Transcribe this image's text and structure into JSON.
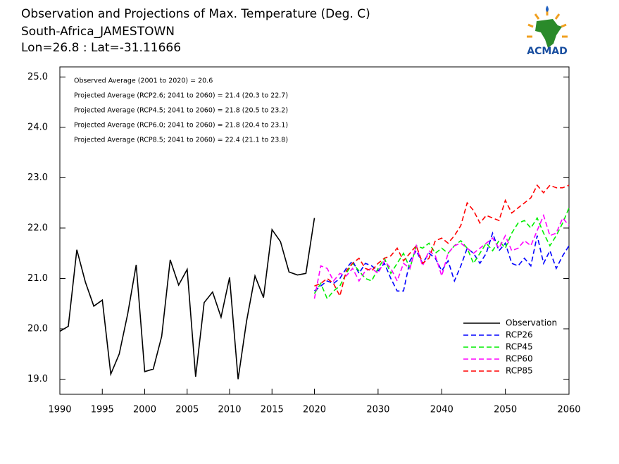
{
  "chart_data": {
    "type": "line",
    "title": "Observation and Projections of Max. Temperature (Deg. C)",
    "subtitle": "South-Africa_JAMESTOWN",
    "location": "Lon=26.8 : Lat=-31.11666",
    "annotations": [
      "Observed Average (2001 to 2020) = 20.6",
      "Projected Average (RCP2.6; 2041 to 2060) = 21.4 (20.3 to 22.7)",
      "Projected Average (RCP4.5; 2041 to 2060) = 21.8 (20.5 to 23.2)",
      "Projected Average (RCP6.0; 2041 to 2060) = 21.8 (20.4 to 23.1)",
      "Projected Average (RCP8.5; 2041 to 2060) = 22.4 (21.1 to 23.8)"
    ],
    "x": [
      1990,
      1991,
      1992,
      1993,
      1994,
      1995,
      1996,
      1997,
      1998,
      1999,
      2000,
      2001,
      2002,
      2003,
      2004,
      2005,
      2006,
      2007,
      2008,
      2009,
      2010,
      2011,
      2012,
      2013,
      2014,
      2015,
      2016,
      2017,
      2018,
      2019,
      2020,
      2021,
      2022,
      2023,
      2024,
      2025,
      2026,
      2027,
      2028,
      2029,
      2030,
      2031,
      2032,
      2033,
      2034,
      2035,
      2036,
      2037,
      2038,
      2039,
      2040,
      2041,
      2042,
      2043,
      2044,
      2045,
      2046,
      2047,
      2048,
      2049,
      2050,
      2051,
      2052,
      2053,
      2054,
      2055,
      2056,
      2057,
      2058,
      2059,
      2060
    ],
    "xlim": [
      1990,
      2060
    ],
    "xticks": [
      1990,
      1995,
      2000,
      2005,
      2010,
      2015,
      2020,
      2030,
      2040,
      2050,
      2060
    ],
    "ylim": [
      18.7,
      25.2
    ],
    "yticks": [
      {
        "value": 19,
        "label": "19.0"
      },
      {
        "value": 20,
        "label": "20.0"
      },
      {
        "value": 21,
        "label": "21.0"
      },
      {
        "value": 22,
        "label": "22.0"
      },
      {
        "value": 23,
        "label": "23.0"
      },
      {
        "value": 24,
        "label": "24.0"
      },
      {
        "value": 25,
        "label": "25.0"
      }
    ],
    "legend": "lower right",
    "series": [
      {
        "name": "Observation",
        "color": "#000000",
        "linestyle": "solid",
        "values": [
          19.95,
          20.05,
          21.57,
          20.93,
          20.45,
          20.57,
          19.1,
          19.5,
          20.3,
          21.27,
          19.15,
          19.2,
          19.85,
          21.37,
          20.87,
          21.18,
          19.05,
          20.52,
          20.73,
          20.23,
          21.02,
          19.0,
          20.15,
          21.05,
          20.62,
          21.97,
          21.73,
          21.13,
          21.07,
          21.1,
          22.2,
          null,
          null,
          null,
          null,
          null,
          null,
          null,
          null,
          null,
          null,
          null,
          null,
          null,
          null,
          null,
          null,
          null,
          null,
          null,
          null,
          null,
          null,
          null,
          null,
          null,
          null,
          null,
          null,
          null,
          null,
          null,
          null,
          null,
          null,
          null,
          null,
          null,
          null,
          null,
          null
        ]
      },
      {
        "name": "RCP26",
        "color": "#0000ff",
        "linestyle": "dashed",
        "values": [
          null,
          null,
          null,
          null,
          null,
          null,
          null,
          null,
          null,
          null,
          null,
          null,
          null,
          null,
          null,
          null,
          null,
          null,
          null,
          null,
          null,
          null,
          null,
          null,
          null,
          null,
          null,
          null,
          null,
          null,
          20.75,
          20.85,
          20.95,
          20.9,
          21.0,
          21.2,
          21.35,
          21.1,
          21.3,
          21.25,
          21.15,
          21.3,
          21.0,
          20.75,
          20.75,
          21.35,
          21.55,
          21.3,
          21.5,
          21.4,
          21.15,
          21.35,
          20.95,
          21.25,
          21.6,
          21.5,
          21.3,
          21.5,
          21.9,
          21.55,
          21.7,
          21.3,
          21.25,
          21.4,
          21.25,
          21.85,
          21.3,
          21.55,
          21.2,
          21.45,
          21.65
        ]
      },
      {
        "name": "RCP45",
        "color": "#00ee00",
        "linestyle": "dashed",
        "values": [
          null,
          null,
          null,
          null,
          null,
          null,
          null,
          null,
          null,
          null,
          null,
          null,
          null,
          null,
          null,
          null,
          null,
          null,
          null,
          null,
          null,
          null,
          null,
          null,
          null,
          null,
          null,
          null,
          null,
          null,
          20.7,
          20.9,
          20.6,
          20.75,
          20.85,
          21.1,
          21.3,
          21.15,
          21.0,
          20.95,
          21.2,
          21.4,
          21.1,
          21.3,
          21.5,
          21.2,
          21.65,
          21.6,
          21.7,
          21.5,
          21.6,
          21.5,
          21.65,
          21.75,
          21.6,
          21.3,
          21.5,
          21.7,
          21.55,
          21.75,
          21.6,
          21.9,
          22.1,
          22.15,
          22.0,
          22.2,
          21.9,
          21.65,
          21.85,
          22.1,
          22.4
        ]
      },
      {
        "name": "RCP60",
        "color": "#ff00ff",
        "linestyle": "dashed",
        "values": [
          null,
          null,
          null,
          null,
          null,
          null,
          null,
          null,
          null,
          null,
          null,
          null,
          null,
          null,
          null,
          null,
          null,
          null,
          null,
          null,
          null,
          null,
          null,
          null,
          null,
          null,
          null,
          null,
          null,
          null,
          20.6,
          21.25,
          21.2,
          20.95,
          21.1,
          21.05,
          21.2,
          20.95,
          21.15,
          21.2,
          21.1,
          21.35,
          21.2,
          20.95,
          21.3,
          21.2,
          21.65,
          21.25,
          21.55,
          21.45,
          21.05,
          21.5,
          21.65,
          21.7,
          21.6,
          21.5,
          21.6,
          21.7,
          21.8,
          21.6,
          21.85,
          21.55,
          21.6,
          21.75,
          21.65,
          21.95,
          22.25,
          21.85,
          21.9,
          22.2,
          22.05
        ]
      },
      {
        "name": "RCP85",
        "color": "#ff0000",
        "linestyle": "dashed",
        "values": [
          null,
          null,
          null,
          null,
          null,
          null,
          null,
          null,
          null,
          null,
          null,
          null,
          null,
          null,
          null,
          null,
          null,
          null,
          null,
          null,
          null,
          null,
          null,
          null,
          null,
          null,
          null,
          null,
          null,
          null,
          20.85,
          20.9,
          21.0,
          20.9,
          20.65,
          21.15,
          21.3,
          21.4,
          21.2,
          21.15,
          21.3,
          21.4,
          21.45,
          21.6,
          21.35,
          21.5,
          21.65,
          21.3,
          21.4,
          21.75,
          21.8,
          21.7,
          21.85,
          22.05,
          22.5,
          22.35,
          22.1,
          22.25,
          22.2,
          22.15,
          22.55,
          22.3,
          22.4,
          22.5,
          22.6,
          22.85,
          22.7,
          22.85,
          22.8,
          22.8,
          22.85
        ]
      }
    ]
  },
  "logo": {
    "text": "ACMAD"
  }
}
